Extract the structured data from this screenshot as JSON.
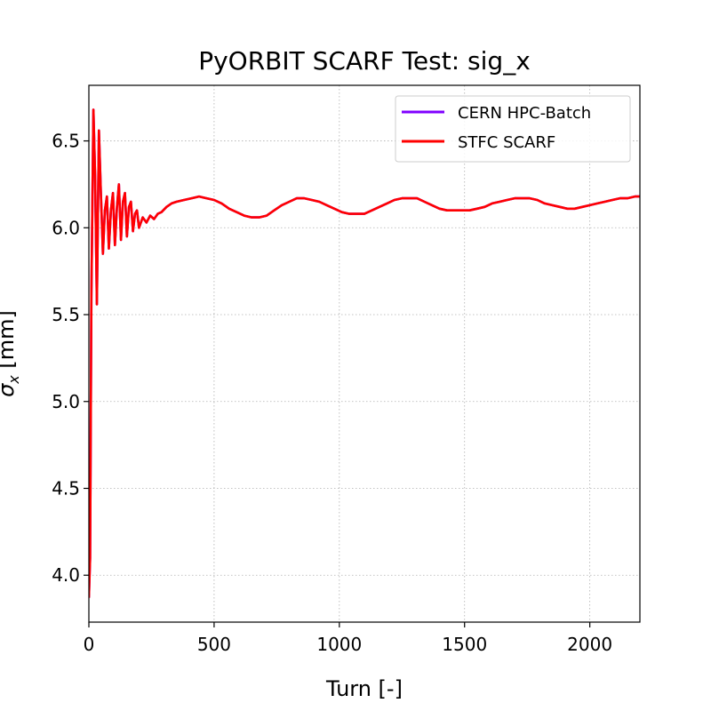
{
  "chart_data": {
    "type": "line",
    "title": "PyORBIT SCARF Test: sig_x",
    "xlabel": "Turn [-]",
    "ylabel": "σx [mm]",
    "ylabel_main": "σ",
    "ylabel_sub": "x",
    "ylabel_rest": " [mm]",
    "xlim": [
      0,
      2200
    ],
    "ylim": [
      3.73,
      6.82
    ],
    "xticks": [
      0,
      500,
      1000,
      1500,
      2000
    ],
    "xtick_labels": [
      "0",
      "500",
      "1000",
      "1500",
      "2000"
    ],
    "yticks": [
      4.0,
      4.5,
      5.0,
      5.5,
      6.0,
      6.5
    ],
    "ytick_labels": [
      "4.0",
      "4.5",
      "5.0",
      "5.5",
      "6.0",
      "6.5"
    ],
    "grid": true,
    "legend_position": "top-right",
    "series": [
      {
        "name": "CERN HPC-Batch",
        "color": "#8000ff",
        "x": [
          0,
          5,
          10,
          18,
          25,
          32,
          40,
          48,
          56,
          64,
          72,
          80,
          88,
          96,
          104,
          112,
          120,
          128,
          136,
          144,
          152,
          160,
          168,
          176,
          184,
          192,
          200,
          215,
          230,
          245,
          260,
          275,
          290,
          310,
          330,
          350,
          380,
          410,
          440,
          470,
          500,
          530,
          560,
          590,
          620,
          650,
          680,
          710,
          740,
          770,
          800,
          830,
          860,
          890,
          920,
          950,
          980,
          1010,
          1040,
          1070,
          1100,
          1130,
          1160,
          1190,
          1220,
          1250,
          1280,
          1310,
          1340,
          1370,
          1400,
          1430,
          1460,
          1490,
          1520,
          1550,
          1580,
          1610,
          1640,
          1670,
          1700,
          1730,
          1760,
          1790,
          1820,
          1850,
          1880,
          1910,
          1940,
          1970,
          2000,
          2030,
          2060,
          2090,
          2120,
          2150,
          2180,
          2200
        ],
        "values": [
          3.87,
          4.1,
          5.6,
          6.68,
          6.3,
          5.56,
          6.56,
          6.2,
          5.85,
          6.1,
          6.18,
          5.88,
          6.1,
          6.2,
          5.9,
          6.12,
          6.25,
          5.93,
          6.15,
          6.2,
          5.95,
          6.12,
          6.15,
          5.98,
          6.08,
          6.1,
          6.0,
          6.06,
          6.03,
          6.07,
          6.05,
          6.08,
          6.09,
          6.12,
          6.14,
          6.15,
          6.16,
          6.17,
          6.18,
          6.17,
          6.16,
          6.14,
          6.11,
          6.09,
          6.07,
          6.06,
          6.06,
          6.07,
          6.1,
          6.13,
          6.15,
          6.17,
          6.17,
          6.16,
          6.15,
          6.13,
          6.11,
          6.09,
          6.08,
          6.08,
          6.08,
          6.1,
          6.12,
          6.14,
          6.16,
          6.17,
          6.17,
          6.17,
          6.15,
          6.13,
          6.11,
          6.1,
          6.1,
          6.1,
          6.1,
          6.11,
          6.12,
          6.14,
          6.15,
          6.16,
          6.17,
          6.17,
          6.17,
          6.16,
          6.14,
          6.13,
          6.12,
          6.11,
          6.11,
          6.12,
          6.13,
          6.14,
          6.15,
          6.16,
          6.17,
          6.17,
          6.18,
          6.18
        ]
      },
      {
        "name": "STFC SCARF",
        "color": "#ff0000",
        "x": [
          0,
          5,
          10,
          18,
          25,
          32,
          40,
          48,
          56,
          64,
          72,
          80,
          88,
          96,
          104,
          112,
          120,
          128,
          136,
          144,
          152,
          160,
          168,
          176,
          184,
          192,
          200,
          215,
          230,
          245,
          260,
          275,
          290,
          310,
          330,
          350,
          380,
          410,
          440,
          470,
          500,
          530,
          560,
          590,
          620,
          650,
          680,
          710,
          740,
          770,
          800,
          830,
          860,
          890,
          920,
          950,
          980,
          1010,
          1040,
          1070,
          1100,
          1130,
          1160,
          1190,
          1220,
          1250,
          1280,
          1310,
          1340,
          1370,
          1400,
          1430,
          1460,
          1490,
          1520,
          1550,
          1580,
          1610,
          1640,
          1670,
          1700,
          1730,
          1760,
          1790,
          1820,
          1850,
          1880,
          1910,
          1940,
          1970,
          2000,
          2030,
          2060,
          2090,
          2120,
          2150,
          2180,
          2200
        ],
        "values": [
          3.87,
          4.1,
          5.6,
          6.68,
          6.3,
          5.56,
          6.56,
          6.2,
          5.85,
          6.1,
          6.18,
          5.88,
          6.1,
          6.2,
          5.9,
          6.12,
          6.25,
          5.93,
          6.15,
          6.2,
          5.95,
          6.12,
          6.15,
          5.98,
          6.08,
          6.1,
          6.0,
          6.06,
          6.03,
          6.07,
          6.05,
          6.08,
          6.09,
          6.12,
          6.14,
          6.15,
          6.16,
          6.17,
          6.18,
          6.17,
          6.16,
          6.14,
          6.11,
          6.09,
          6.07,
          6.06,
          6.06,
          6.07,
          6.1,
          6.13,
          6.15,
          6.17,
          6.17,
          6.16,
          6.15,
          6.13,
          6.11,
          6.09,
          6.08,
          6.08,
          6.08,
          6.1,
          6.12,
          6.14,
          6.16,
          6.17,
          6.17,
          6.17,
          6.15,
          6.13,
          6.11,
          6.1,
          6.1,
          6.1,
          6.1,
          6.11,
          6.12,
          6.14,
          6.15,
          6.16,
          6.17,
          6.17,
          6.17,
          6.16,
          6.14,
          6.13,
          6.12,
          6.11,
          6.11,
          6.12,
          6.13,
          6.14,
          6.15,
          6.16,
          6.17,
          6.17,
          6.18,
          6.18
        ]
      }
    ]
  }
}
